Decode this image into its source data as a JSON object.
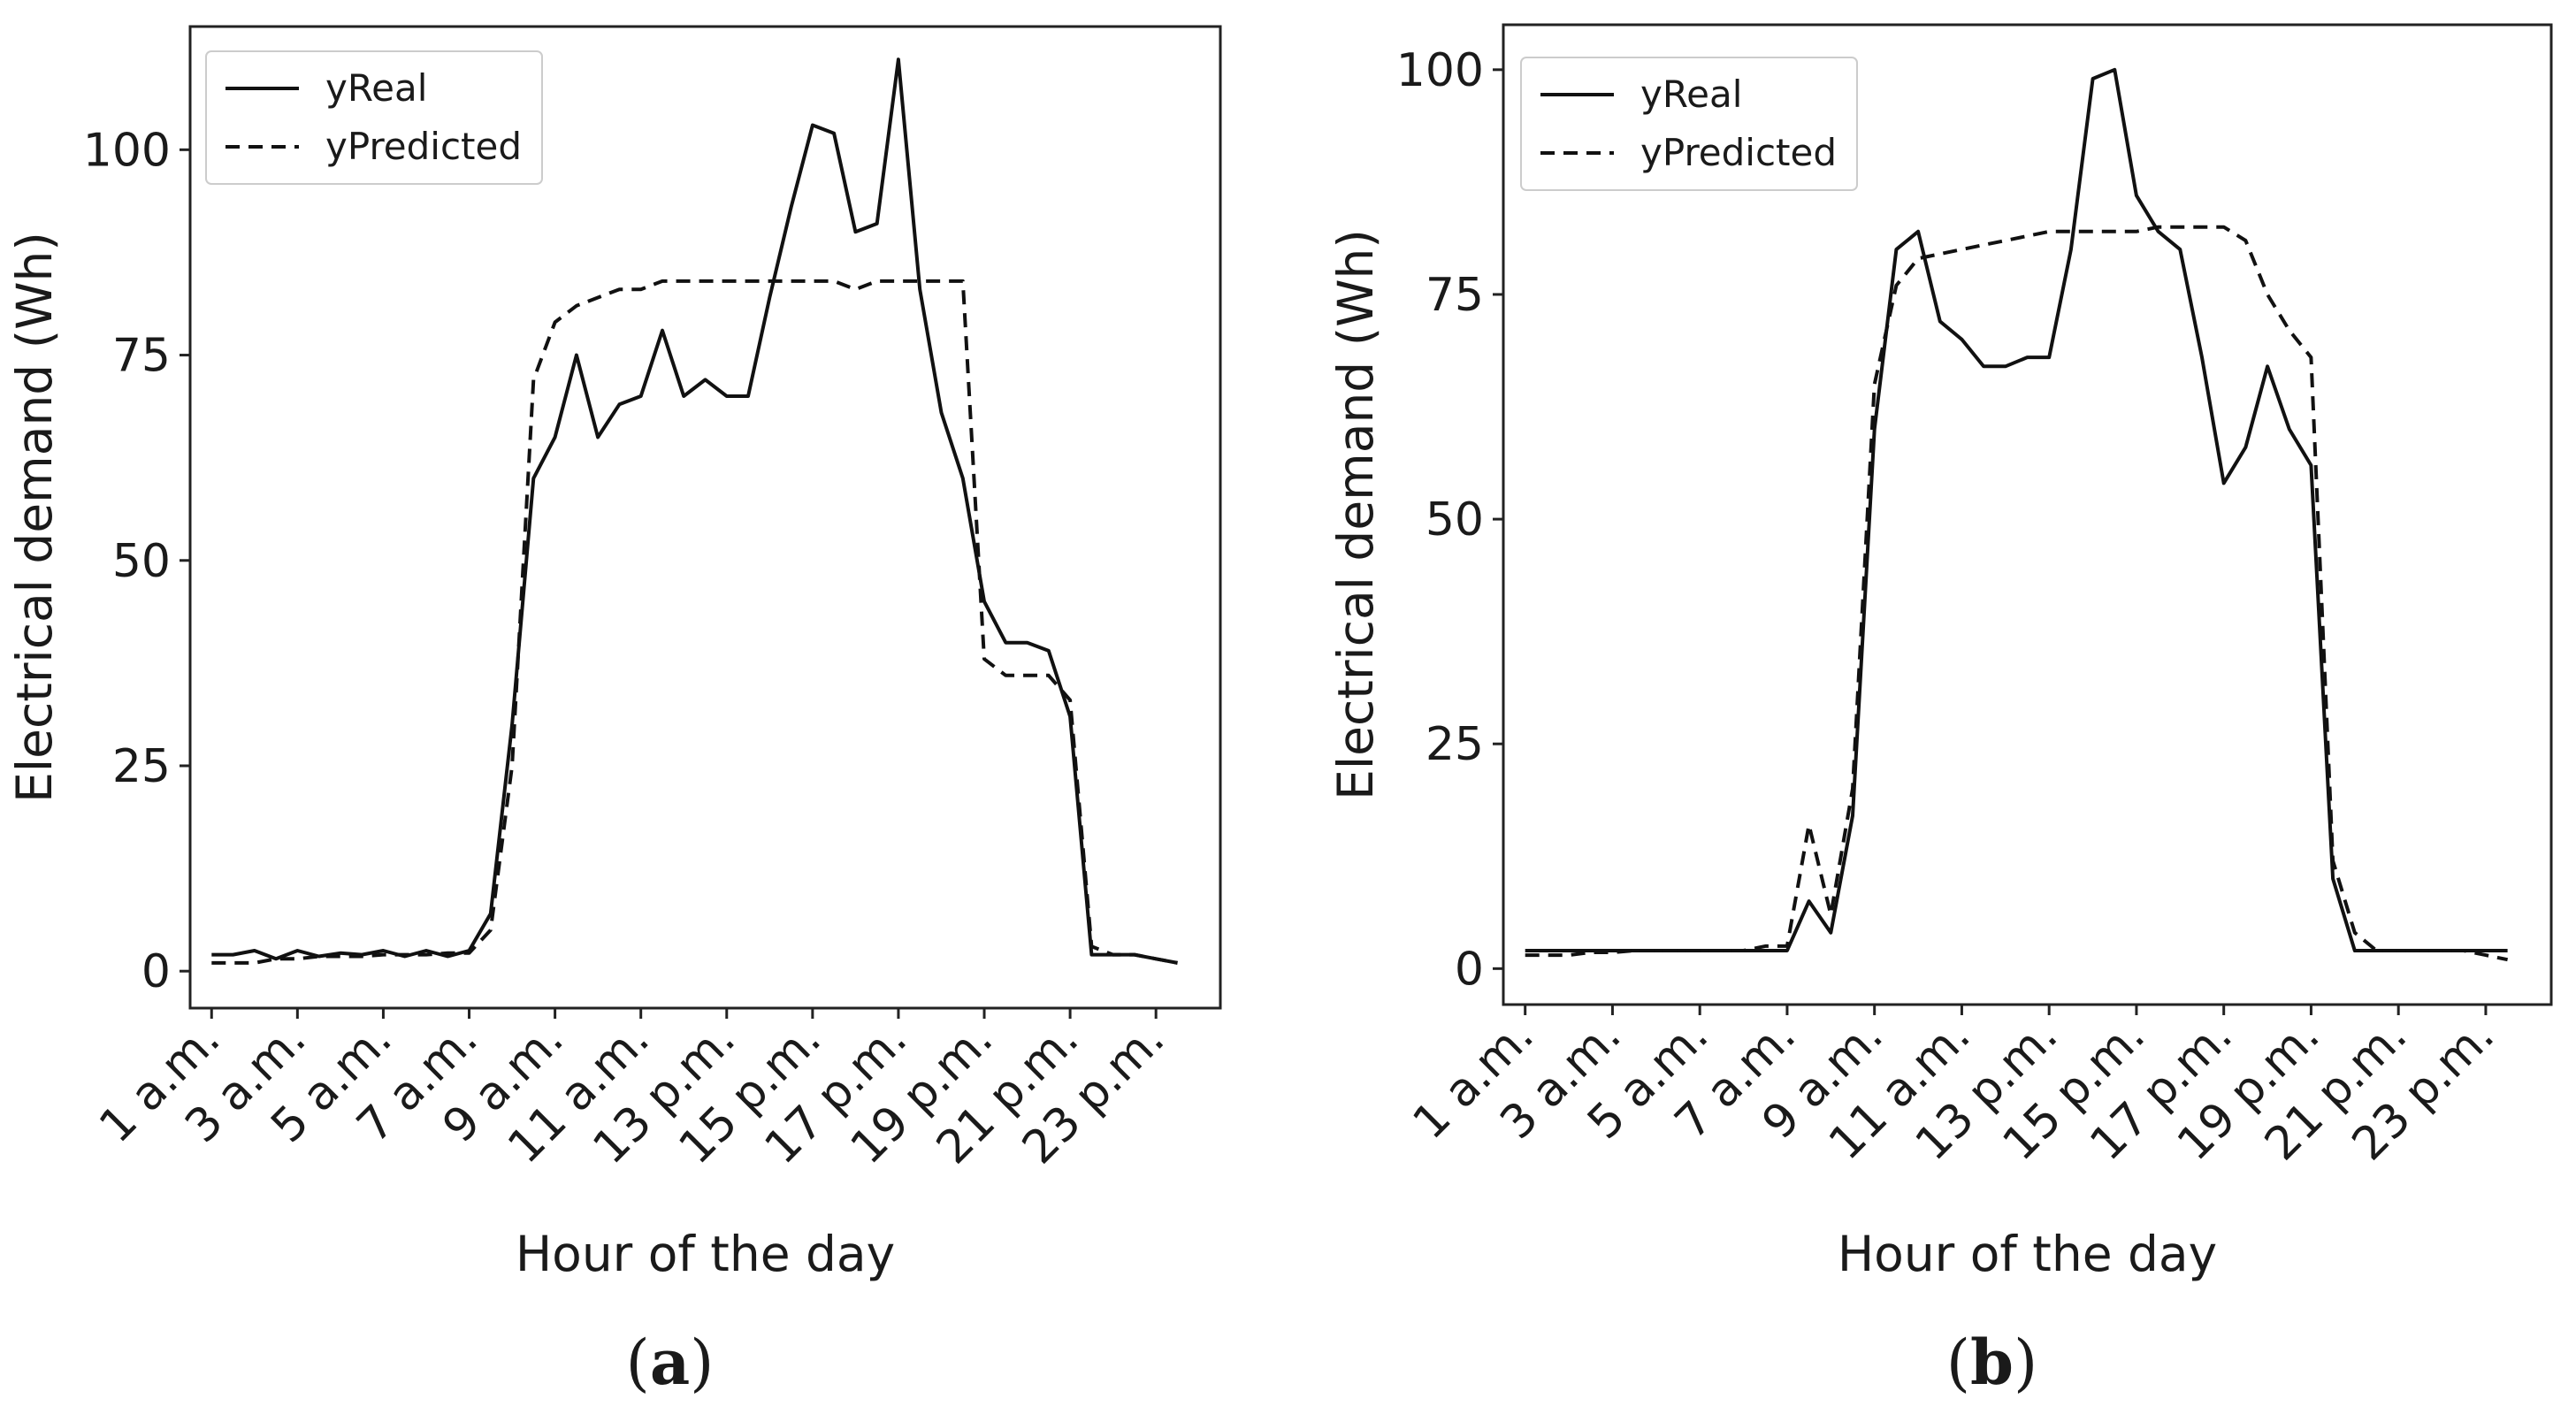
{
  "chart_data": [
    {
      "type": "line",
      "panel_label": "a",
      "title": "",
      "xlabel": "Hour of the day",
      "ylabel": "Electrical demand (Wh)",
      "ylim": [
        -4.5,
        115
      ],
      "xlim": [
        0.5,
        24.5
      ],
      "y_ticks": [
        0,
        25,
        50,
        75,
        100
      ],
      "x_ticks": [
        1,
        3,
        5,
        7,
        9,
        11,
        13,
        15,
        17,
        19,
        21,
        23
      ],
      "x_tick_labels": [
        "1 a.m.",
        "3 a.m.",
        "5 a.m.",
        "7 a.m.",
        "9 a.m.",
        "11 a.m.",
        "13 p.m.",
        "15 p.m.",
        "17 p.m.",
        "19 p.m.",
        "21 p.m.",
        "23 p.m."
      ],
      "legend": {
        "position": "top-left",
        "entries": [
          "yReal",
          "yPredicted"
        ]
      },
      "series": [
        {
          "name": "yReal",
          "style": "solid",
          "x": [
            1,
            1.5,
            2,
            2.5,
            3,
            3.5,
            4,
            4.5,
            5,
            5.5,
            6,
            6.5,
            7,
            7.5,
            8,
            8.5,
            9,
            9.5,
            10,
            10.5,
            11,
            11.5,
            12,
            12.5,
            13,
            13.5,
            14,
            14.5,
            15,
            15.5,
            16,
            16.5,
            17,
            17.5,
            18,
            18.5,
            19,
            19.5,
            20,
            20.5,
            21,
            21.5,
            22,
            22.5,
            23,
            23.5
          ],
          "values": [
            2,
            2,
            2.5,
            1.5,
            2.5,
            1.8,
            2.2,
            2,
            2.5,
            1.8,
            2.5,
            1.8,
            2.5,
            7,
            30,
            60,
            65,
            75,
            65,
            69,
            70,
            78,
            70,
            72,
            70,
            70,
            82,
            93,
            103,
            102,
            90,
            91,
            111,
            83,
            68,
            60,
            45,
            40,
            40,
            39,
            31,
            2,
            2,
            2,
            1.5,
            1
          ]
        },
        {
          "name": "yPredicted",
          "style": "dashed",
          "x": [
            1,
            1.5,
            2,
            2.5,
            3,
            3.5,
            4,
            4.5,
            5,
            5.5,
            6,
            6.5,
            7,
            7.5,
            8,
            8.5,
            9,
            9.5,
            10,
            10.5,
            11,
            11.5,
            12,
            12.5,
            13,
            13.5,
            14,
            14.5,
            15,
            15.5,
            16,
            16.5,
            17,
            17.5,
            18,
            18.5,
            19,
            19.5,
            20,
            20.5,
            21,
            21.5,
            22,
            22.5,
            23,
            23.5
          ],
          "values": [
            1,
            1,
            1,
            1.5,
            1.5,
            1.8,
            1.8,
            1.8,
            2,
            2,
            2,
            2.2,
            2.2,
            5,
            25,
            72,
            79,
            81,
            82,
            83,
            83,
            84,
            84,
            84,
            84,
            84,
            84,
            84,
            84,
            84,
            83,
            84,
            84,
            84,
            84,
            84,
            38,
            36,
            36,
            36,
            33,
            3,
            2,
            2,
            1.5,
            1
          ]
        }
      ]
    },
    {
      "type": "line",
      "panel_label": "b",
      "title": "",
      "xlabel": "Hour of the day",
      "ylabel": "Electrical demand (Wh)",
      "ylim": [
        -4,
        105
      ],
      "xlim": [
        0.5,
        24.5
      ],
      "y_ticks": [
        0,
        25,
        50,
        75,
        100
      ],
      "x_ticks": [
        1,
        3,
        5,
        7,
        9,
        11,
        13,
        15,
        17,
        19,
        21,
        23
      ],
      "x_tick_labels": [
        "1 a.m.",
        "3 a.m.",
        "5 a.m.",
        "7 a.m.",
        "9 a.m.",
        "11 a.m.",
        "13 p.m.",
        "15 p.m.",
        "17 p.m.",
        "19 p.m.",
        "21 p.m.",
        "23 p.m."
      ],
      "legend": {
        "position": "top-left",
        "entries": [
          "yReal",
          "yPredicted"
        ]
      },
      "series": [
        {
          "name": "yReal",
          "style": "solid",
          "x": [
            1,
            1.5,
            2,
            2.5,
            3,
            3.5,
            4,
            4.5,
            5,
            5.5,
            6,
            6.5,
            7,
            7.5,
            8,
            8.5,
            9,
            9.5,
            10,
            10.5,
            11,
            11.5,
            12,
            12.5,
            13,
            13.5,
            14,
            14.5,
            15,
            15.5,
            16,
            16.5,
            17,
            17.5,
            18,
            18.5,
            19,
            19.5,
            20,
            20.5,
            21,
            21.5,
            22,
            22.5,
            23,
            23.5
          ],
          "values": [
            2,
            2,
            2,
            2,
            2,
            2,
            2,
            2,
            2,
            2,
            2,
            2,
            2,
            7.5,
            4,
            17,
            60,
            80,
            82,
            72,
            70,
            67,
            67,
            68,
            68,
            80,
            99,
            100,
            86,
            82,
            80,
            68,
            54,
            58,
            67,
            60,
            56,
            10,
            2,
            2,
            2,
            2,
            2,
            2,
            2,
            2
          ]
        },
        {
          "name": "yPredicted",
          "style": "dashed",
          "x": [
            1,
            1.5,
            2,
            2.5,
            3,
            3.5,
            4,
            4.5,
            5,
            5.5,
            6,
            6.5,
            7,
            7.5,
            8,
            8.5,
            9,
            9.5,
            10,
            10.5,
            11,
            11.5,
            12,
            12.5,
            13,
            13.5,
            14,
            14.5,
            15,
            15.5,
            16,
            16.5,
            17,
            17.5,
            18,
            18.5,
            19,
            19.5,
            20,
            20.5,
            21,
            21.5,
            22,
            22.5,
            23,
            23.5
          ],
          "values": [
            1.5,
            1.5,
            1.5,
            1.8,
            1.8,
            2,
            2,
            2,
            2,
            2,
            2,
            2.5,
            2.5,
            16,
            6,
            20,
            65,
            76,
            79,
            79.5,
            80,
            80.5,
            81,
            81.5,
            82,
            82,
            82,
            82,
            82,
            82.5,
            82.5,
            82.5,
            82.5,
            81,
            75,
            71,
            68,
            12,
            4,
            2,
            2,
            2,
            2,
            2,
            1.5,
            1
          ]
        }
      ]
    }
  ]
}
